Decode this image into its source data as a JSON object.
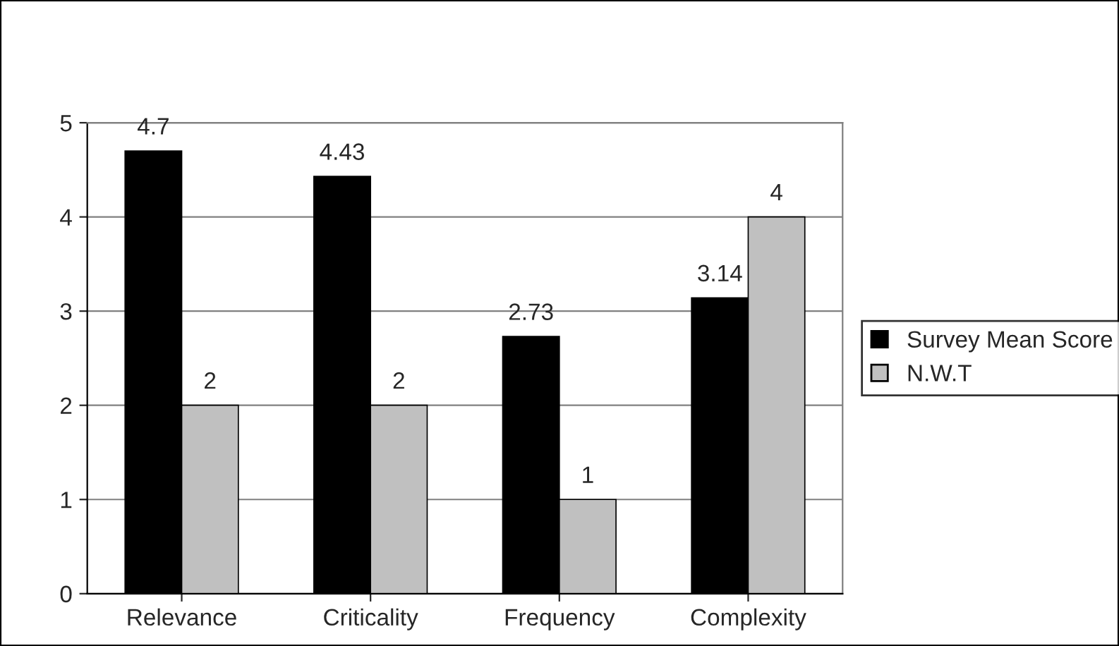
{
  "chart_data": {
    "type": "bar",
    "categories": [
      "Relevance",
      "Criticality",
      "Frequency",
      "Complexity"
    ],
    "series": [
      {
        "name": "Survey Mean Score",
        "color": "#000000",
        "values": [
          4.7,
          4.43,
          2.73,
          3.14
        ]
      },
      {
        "name": "N.W.T",
        "color": "#c0c0c0",
        "values": [
          2,
          2,
          1,
          4
        ]
      }
    ],
    "ylim": [
      0,
      5
    ],
    "yticks": [
      0,
      1,
      2,
      3,
      4,
      5
    ],
    "grid": "y",
    "legend": "right",
    "data_labels": true
  }
}
